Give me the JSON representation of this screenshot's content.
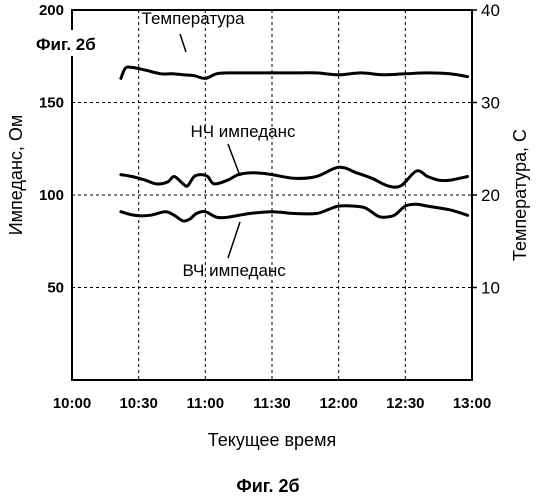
{
  "chart_data": {
    "type": "line",
    "panel_label": "Фиг. 2б",
    "caption": "Фиг. 2б",
    "xlabel": "Текущее время",
    "ylabel": "Импеданс, Ом",
    "ylabel_right": "Температура, С",
    "x_ticks": [
      "10:00",
      "10:30",
      "11:00",
      "11:30",
      "12:00",
      "12:30",
      "13:00"
    ],
    "xlim": [
      "10:00",
      "13:00"
    ],
    "ylim": [
      0,
      200
    ],
    "y_ticks": [
      50,
      100,
      150,
      200
    ],
    "ylim_right": [
      0,
      40
    ],
    "y_ticks_right": [
      10,
      20,
      30,
      40
    ],
    "grid": true,
    "series": [
      {
        "name": "Температура",
        "axis": "right",
        "x": [
          "10:22",
          "10:24",
          "10:27",
          "10:33",
          "10:40",
          "10:45",
          "10:50",
          "10:55",
          "11:00",
          "11:05",
          "11:10",
          "11:20",
          "11:30",
          "11:40",
          "11:50",
          "12:00",
          "12:10",
          "12:20",
          "12:30",
          "12:40",
          "12:50",
          "12:58"
        ],
        "values": [
          32.6,
          33.7,
          33.8,
          33.5,
          33.1,
          33.1,
          33.0,
          32.9,
          32.6,
          33.1,
          33.2,
          33.2,
          33.2,
          33.2,
          33.2,
          33.0,
          33.2,
          33.0,
          33.1,
          33.2,
          33.1,
          32.8
        ]
      },
      {
        "name": "НЧ импеданс",
        "axis": "left",
        "x": [
          "10:22",
          "10:27",
          "10:33",
          "10:38",
          "10:43",
          "10:46",
          "10:50",
          "10:52",
          "10:55",
          "10:58",
          "11:01",
          "11:04",
          "11:10",
          "11:15",
          "11:22",
          "11:30",
          "11:40",
          "11:50",
          "12:00",
          "12:08",
          "12:15",
          "12:22",
          "12:28",
          "12:35",
          "12:40",
          "12:45",
          "12:50",
          "12:58"
        ],
        "values": [
          111,
          110,
          108,
          106,
          107,
          110,
          106,
          105,
          110,
          111,
          110,
          106,
          108,
          111,
          112,
          111,
          109,
          110,
          115,
          112,
          109,
          105,
          105,
          113,
          110,
          108,
          108,
          110
        ]
      },
      {
        "name": "ВЧ импеданс",
        "axis": "left",
        "x": [
          "10:22",
          "10:28",
          "10:35",
          "10:42",
          "10:46",
          "10:50",
          "10:53",
          "10:56",
          "11:00",
          "11:05",
          "11:10",
          "11:20",
          "11:30",
          "11:40",
          "11:50",
          "11:55",
          "12:00",
          "12:07",
          "12:12",
          "12:17",
          "12:20",
          "12:25",
          "12:30",
          "12:35",
          "12:40",
          "12:50",
          "12:58"
        ],
        "values": [
          91,
          89,
          89,
          91,
          89,
          86,
          87,
          90,
          91,
          88,
          88,
          90,
          91,
          90,
          90,
          92,
          94,
          94,
          93,
          89,
          88,
          89,
          94,
          95,
          94,
          92,
          89
        ]
      }
    ],
    "annotations": [
      {
        "text": "Температура",
        "series": "Температура",
        "x": "10:43",
        "y": 198,
        "axis": "left"
      },
      {
        "text": "НЧ импеданс",
        "series": "НЧ импеданс",
        "x": "11:05",
        "y": 132,
        "axis": "left"
      },
      {
        "text": "ВЧ импеданс",
        "series": "ВЧ импеданс",
        "x": "11:05",
        "y": 57,
        "axis": "left"
      }
    ]
  }
}
